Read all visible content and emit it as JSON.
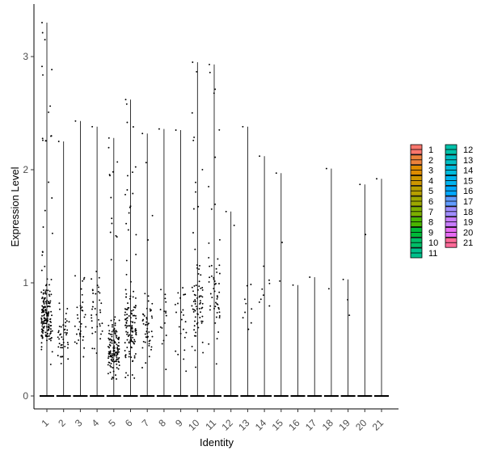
{
  "chart_data": {
    "type": "violin-jitter",
    "xlabel": "Identity",
    "ylabel": "Expression Level",
    "categories": [
      "1",
      "2",
      "3",
      "4",
      "5",
      "6",
      "7",
      "8",
      "9",
      "10",
      "11",
      "12",
      "13",
      "14",
      "15",
      "16",
      "17",
      "18",
      "19",
      "20",
      "21"
    ],
    "y_ticks": [
      "0",
      "1",
      "2",
      "3"
    ],
    "ylim": [
      -0.15,
      3.45
    ],
    "series": [
      {
        "name": "1",
        "color": "#F8766D",
        "max": 3.3,
        "n": 300,
        "zero_frac": 0.4,
        "loc": 0.7,
        "spread": 0.35
      },
      {
        "name": "2",
        "color": "#EC823C",
        "max": 2.25,
        "n": 100,
        "zero_frac": 0.55,
        "loc": 0.55,
        "spread": 0.3
      },
      {
        "name": "3",
        "color": "#DE8C00",
        "max": 2.43,
        "n": 80,
        "zero_frac": 0.55,
        "loc": 0.7,
        "spread": 0.45
      },
      {
        "name": "4",
        "color": "#CD9600",
        "max": 2.38,
        "n": 85,
        "zero_frac": 0.55,
        "loc": 0.7,
        "spread": 0.45
      },
      {
        "name": "5",
        "color": "#B79F00",
        "max": 2.28,
        "n": 260,
        "zero_frac": 0.45,
        "loc": 0.4,
        "spread": 0.3
      },
      {
        "name": "6",
        "color": "#9DA700",
        "max": 2.62,
        "n": 240,
        "zero_frac": 0.45,
        "loc": 0.6,
        "spread": 0.4
      },
      {
        "name": "7",
        "color": "#7CAE00",
        "max": 2.32,
        "n": 110,
        "zero_frac": 0.55,
        "loc": 0.6,
        "spread": 0.35
      },
      {
        "name": "8",
        "color": "#49B500",
        "max": 2.36,
        "n": 40,
        "zero_frac": 0.6,
        "loc": 0.7,
        "spread": 0.45
      },
      {
        "name": "9",
        "color": "#00BA38",
        "max": 2.35,
        "n": 60,
        "zero_frac": 0.6,
        "loc": 0.7,
        "spread": 0.4
      },
      {
        "name": "10",
        "color": "#00BE67",
        "max": 2.95,
        "n": 150,
        "zero_frac": 0.5,
        "loc": 0.8,
        "spread": 0.5
      },
      {
        "name": "11",
        "color": "#00C08B",
        "max": 2.93,
        "n": 110,
        "zero_frac": 0.5,
        "loc": 0.9,
        "spread": 0.5
      },
      {
        "name": "12",
        "color": "#00C1A9",
        "max": 1.63,
        "n": 4,
        "zero_frac": 0.8,
        "loc": 1.55,
        "spread": 0.1
      },
      {
        "name": "13",
        "color": "#00BFC4",
        "max": 2.38,
        "n": 30,
        "zero_frac": 0.7,
        "loc": 0.9,
        "spread": 0.5
      },
      {
        "name": "14",
        "color": "#00BBDC",
        "max": 2.12,
        "n": 25,
        "zero_frac": 0.7,
        "loc": 0.9,
        "spread": 0.4
      },
      {
        "name": "15",
        "color": "#00B4EF",
        "max": 1.97,
        "n": 8,
        "zero_frac": 0.8,
        "loc": 1.0,
        "spread": 0.4
      },
      {
        "name": "16",
        "color": "#00A9FF",
        "max": 0.98,
        "n": 1,
        "zero_frac": 0.9,
        "loc": 0.98,
        "spread": 0.01
      },
      {
        "name": "17",
        "color": "#619CFF",
        "max": 1.05,
        "n": 1,
        "zero_frac": 0.9,
        "loc": 1.02,
        "spread": 0.01
      },
      {
        "name": "18",
        "color": "#9F8CFF",
        "max": 2.01,
        "n": 5,
        "zero_frac": 0.85,
        "loc": 0.95,
        "spread": 0.3
      },
      {
        "name": "19",
        "color": "#C77CFF",
        "max": 1.03,
        "n": 12,
        "zero_frac": 0.8,
        "loc": 0.75,
        "spread": 0.2
      },
      {
        "name": "20",
        "color": "#E76BF3",
        "max": 1.87,
        "n": 4,
        "zero_frac": 0.85,
        "loc": 1.5,
        "spread": 0.3
      },
      {
        "name": "21",
        "color": "#FF61C9",
        "max": 1.92,
        "n": 2,
        "zero_frac": 0.9,
        "loc": 1.0,
        "spread": 0.6
      }
    ],
    "last_legend_color": "#FF6A98",
    "legend": "right",
    "grid": false
  }
}
